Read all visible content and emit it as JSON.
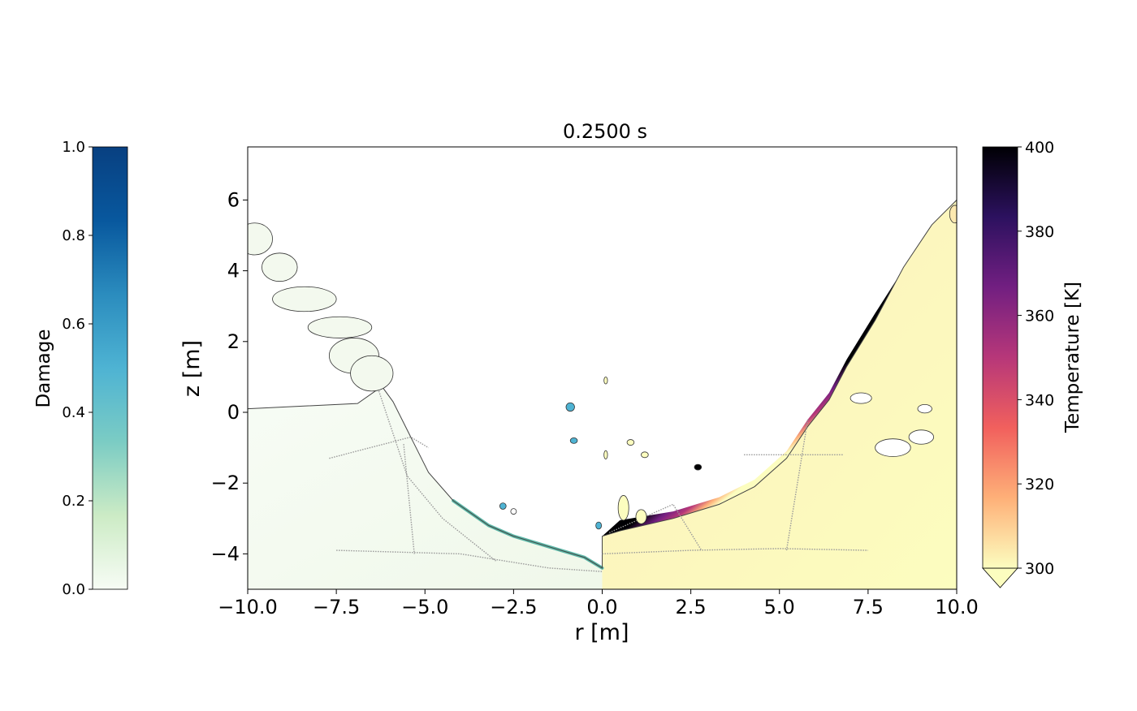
{
  "chart_data": {
    "type": "heatmap",
    "title": "0.2500 s",
    "xlabel": "r [m]",
    "ylabel": "z [m]",
    "xlim": [
      -10,
      10
    ],
    "ylim": [
      -5,
      7.5
    ],
    "xticks": [
      -10.0,
      -7.5,
      -5.0,
      -2.5,
      0.0,
      2.5,
      5.0,
      7.5,
      10.0
    ],
    "xtick_labels": [
      "−10.0",
      "−7.5",
      "−5.0",
      "−2.5",
      "0.0",
      "2.5",
      "5.0",
      "7.5",
      "10.0"
    ],
    "yticks": [
      -4,
      -2,
      0,
      2,
      4,
      6
    ],
    "ytick_labels": [
      "−4",
      "−2",
      "0",
      "2",
      "4",
      "6"
    ],
    "grid": false,
    "left_field": {
      "quantity": "Damage",
      "colorbar_label": "Damage",
      "range": [
        0.0,
        1.0
      ],
      "ticks": [
        0.0,
        0.2,
        0.4,
        0.6,
        0.8,
        1.0
      ],
      "tick_labels": [
        "0.0",
        "0.2",
        "0.4",
        "0.6",
        "0.8",
        "1.0"
      ],
      "colormap": [
        "#f7fcf5",
        "#ccebc5",
        "#7bccc4",
        "#4eb3d3",
        "#2b8cbe",
        "#08589e",
        "#084081"
      ]
    },
    "right_field": {
      "quantity": "Temperature",
      "colorbar_label": "Temperature [K]",
      "range": [
        300,
        400
      ],
      "ticks": [
        300,
        320,
        340,
        360,
        380,
        400
      ],
      "tick_labels": [
        "300",
        "320",
        "340",
        "360",
        "380",
        "400"
      ],
      "extend": "min",
      "colormap": [
        "#fcfdbf",
        "#feb078",
        "#f1605d",
        "#b73779",
        "#721f81",
        "#2c115f",
        "#000004"
      ]
    },
    "material_boundary": [
      [
        -10,
        0.1
      ],
      [
        -6.9,
        0.25
      ],
      [
        -6.4,
        0.6
      ],
      [
        -6.3,
        0.85
      ],
      [
        -5.9,
        0.3
      ],
      [
        -5.4,
        -0.7
      ],
      [
        -4.9,
        -1.7
      ],
      [
        -4.2,
        -2.5
      ],
      [
        -3.2,
        -3.2
      ],
      [
        -2.5,
        -3.5
      ],
      [
        -1.5,
        -3.8
      ],
      [
        -0.5,
        -4.1
      ],
      [
        0,
        -4.4
      ],
      [
        0,
        -3.5
      ],
      [
        0.5,
        -3.35
      ],
      [
        2.0,
        -3.0
      ],
      [
        3.3,
        -2.6
      ],
      [
        4.3,
        -2.1
      ],
      [
        5.2,
        -1.3
      ],
      [
        5.8,
        -0.4
      ],
      [
        6.4,
        0.35
      ],
      [
        6.9,
        1.3
      ],
      [
        7.7,
        2.6
      ],
      [
        8.5,
        4.1
      ],
      [
        9.3,
        5.3
      ],
      [
        10,
        6.0
      ]
    ],
    "hot_layer_boundary": [
      [
        0,
        -3.5
      ],
      [
        0.5,
        -3.05
      ],
      [
        2.0,
        -2.8
      ],
      [
        3.3,
        -2.4
      ],
      [
        4.3,
        -1.9
      ],
      [
        5.2,
        -1.1
      ],
      [
        5.8,
        -0.2
      ],
      [
        6.4,
        0.55
      ],
      [
        6.9,
        1.5
      ],
      [
        7.7,
        2.8
      ],
      [
        8.4,
        3.9
      ]
    ]
  }
}
